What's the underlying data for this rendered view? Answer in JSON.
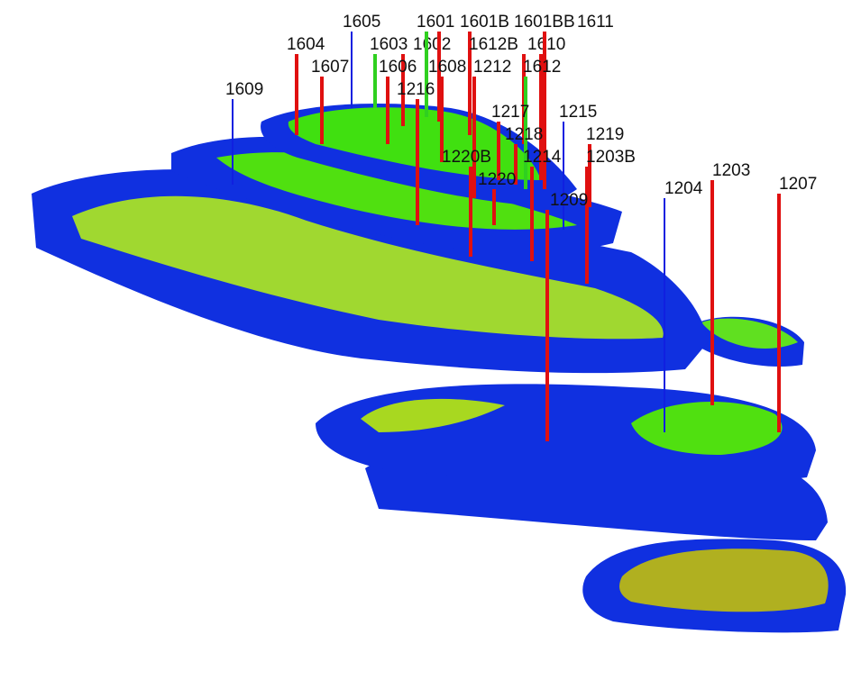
{
  "colors": {
    "layer_edge": "#1030e0",
    "layer_top": "#3fe010",
    "layer_top_light": "#a0e020",
    "layer_olive": "#b8b820",
    "well_red": "#e01010",
    "well_blue": "#1020e0",
    "well_green": "#30d020"
  },
  "wells": [
    {
      "name": "1609",
      "color": "blue"
    },
    {
      "name": "1604",
      "color": "red"
    },
    {
      "name": "1607",
      "color": "red"
    },
    {
      "name": "1605",
      "color": "blue"
    },
    {
      "name": "1603",
      "color": "green"
    },
    {
      "name": "1602",
      "color": "red"
    },
    {
      "name": "1606",
      "color": "red"
    },
    {
      "name": "1601",
      "color": "green"
    },
    {
      "name": "1601B",
      "color": "red"
    },
    {
      "name": "1601BB",
      "color": "red"
    },
    {
      "name": "1610",
      "color": "red"
    },
    {
      "name": "1611",
      "color": "red"
    },
    {
      "name": "1612B",
      "color": "red"
    },
    {
      "name": "1612",
      "color": "green"
    },
    {
      "name": "1608",
      "color": "red"
    },
    {
      "name": "1212",
      "color": "red"
    },
    {
      "name": "1216",
      "color": "red"
    },
    {
      "name": "1217",
      "color": "red"
    },
    {
      "name": "1218",
      "color": "red"
    },
    {
      "name": "1215",
      "color": "blue"
    },
    {
      "name": "1220B",
      "color": "red"
    },
    {
      "name": "1220",
      "color": "red"
    },
    {
      "name": "1214",
      "color": "red"
    },
    {
      "name": "1219",
      "color": "red"
    },
    {
      "name": "1203B",
      "color": "red"
    },
    {
      "name": "1209",
      "color": "red"
    },
    {
      "name": "1204",
      "color": "blue"
    },
    {
      "name": "1203",
      "color": "red"
    },
    {
      "name": "1207",
      "color": "red"
    }
  ]
}
